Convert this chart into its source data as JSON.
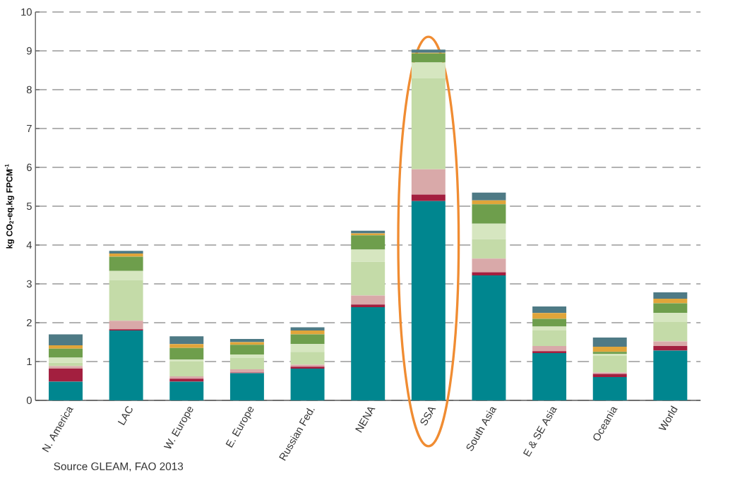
{
  "chart_data": {
    "type": "bar",
    "stacked": true,
    "ylabel": "kg CO$_{2}$-eq.kg FPCM$^{-1}$",
    "categories": [
      "N. America",
      "LAC",
      "W. Europe",
      "E. Europe",
      "Russian Fed.",
      "NENA",
      "SSA",
      "South Asia",
      "E & SE Asia",
      "Oceania",
      "World"
    ],
    "series": [
      {
        "color": "#00868f",
        "values": [
          0.48,
          1.8,
          0.48,
          0.7,
          0.82,
          2.4,
          5.13,
          3.22,
          1.22,
          0.6,
          1.28
        ]
      },
      {
        "color": "#a31f3f",
        "values": [
          0.34,
          0.03,
          0.08,
          0.02,
          0.05,
          0.07,
          0.17,
          0.08,
          0.05,
          0.08,
          0.12
        ]
      },
      {
        "color": "#d9a9a9",
        "values": [
          0.06,
          0.22,
          0.06,
          0.08,
          0.05,
          0.23,
          0.65,
          0.35,
          0.13,
          0.04,
          0.12
        ]
      },
      {
        "color": "#c4dba8",
        "values": [
          0.09,
          1.05,
          0.38,
          0.3,
          0.33,
          0.87,
          2.35,
          0.5,
          0.4,
          0.43,
          0.5
        ]
      },
      {
        "color": "#d6e6c0",
        "values": [
          0.13,
          0.23,
          0.05,
          0.08,
          0.2,
          0.31,
          0.4,
          0.4,
          0.1,
          0.05,
          0.23
        ]
      },
      {
        "color": "#6e9e4c",
        "values": [
          0.23,
          0.37,
          0.3,
          0.25,
          0.25,
          0.37,
          0.23,
          0.5,
          0.2,
          0.05,
          0.25
        ]
      },
      {
        "color": "#e0a53a",
        "values": [
          0.09,
          0.08,
          0.1,
          0.07,
          0.1,
          0.05,
          0.02,
          0.1,
          0.15,
          0.13,
          0.12
        ]
      },
      {
        "color": "#4e7a85",
        "values": [
          0.28,
          0.07,
          0.2,
          0.08,
          0.08,
          0.07,
          0.08,
          0.2,
          0.17,
          0.24,
          0.16
        ]
      }
    ],
    "ylim": [
      0,
      10
    ],
    "yticks": [
      0,
      1,
      2,
      3,
      4,
      5,
      6,
      7,
      8,
      9,
      10
    ],
    "grid": "y",
    "line_style": "dashed",
    "annotations": [
      "Source GLEAM, FAO 2013"
    ]
  }
}
